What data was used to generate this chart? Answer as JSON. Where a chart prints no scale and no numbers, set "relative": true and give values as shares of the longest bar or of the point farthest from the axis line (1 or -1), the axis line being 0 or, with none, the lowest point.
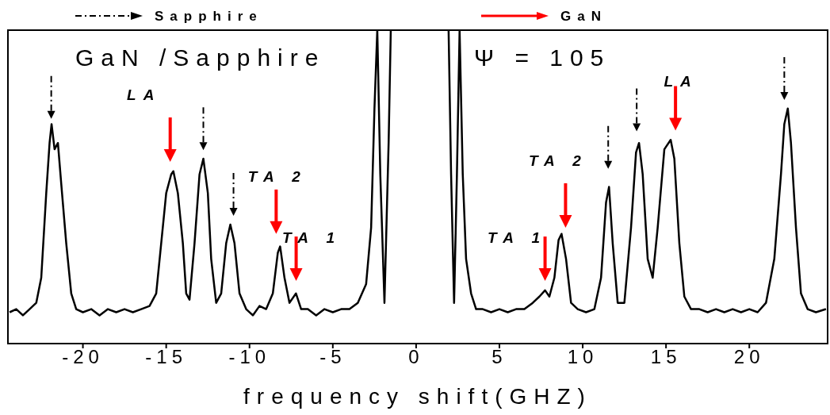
{
  "chart_data": {
    "type": "line",
    "relative": true,
    "xlabel": "frequency shift(GHZ)",
    "xlim": [
      -24.5,
      24.7
    ],
    "xticks": [
      -20,
      -15,
      -10,
      -5,
      0,
      5,
      10,
      15,
      20
    ],
    "legend": "top",
    "annotations": [
      "GaN /Sapphire",
      "Ψ = 105",
      "LA",
      "TA 2",
      "TA 1",
      "TA 1",
      "TA 2",
      "LA"
    ],
    "series": [
      {
        "color": "#000000",
        "x": [
          -24.4,
          -24.0,
          -23.6,
          -23.2,
          -22.8,
          -22.5,
          -22.2,
          -22.0,
          -21.88,
          -21.7,
          -21.5,
          -21.3,
          -21.0,
          -20.7,
          -20.4,
          -20.0,
          -19.5,
          -19.0,
          -18.5,
          -18.0,
          -17.5,
          -17.0,
          -16.5,
          -16.0,
          -15.6,
          -15.3,
          -15.0,
          -14.7,
          -14.57,
          -14.3,
          -14.0,
          -13.8,
          -13.6,
          -13.3,
          -13.0,
          -12.77,
          -12.5,
          -12.3,
          -12.0,
          -11.7,
          -11.4,
          -11.15,
          -10.9,
          -10.6,
          -10.2,
          -9.8,
          -9.4,
          -9.0,
          -8.6,
          -8.3,
          -8.16,
          -7.9,
          -7.6,
          -7.21,
          -6.9,
          -6.5,
          -6.0,
          -5.5,
          -5.0,
          -4.5,
          -4.0,
          -3.5,
          -3.0,
          -2.7,
          -2.5,
          -2.33,
          -2.15,
          -1.9,
          -1.65,
          -1.52,
          0,
          1.95,
          2.1,
          2.28,
          2.45,
          2.61,
          2.8,
          3.0,
          3.3,
          3.6,
          4.0,
          4.5,
          5.0,
          5.5,
          6.0,
          6.5,
          7.0,
          7.4,
          7.74,
          8.0,
          8.3,
          8.55,
          8.73,
          9.0,
          9.3,
          9.7,
          10.2,
          10.7,
          11.1,
          11.4,
          11.58,
          11.8,
          12.1,
          12.5,
          12.9,
          13.2,
          13.38,
          13.6,
          13.9,
          14.2,
          14.5,
          14.9,
          15.28,
          15.5,
          15.8,
          16.1,
          16.5,
          17.0,
          17.5,
          18.0,
          18.5,
          19.0,
          19.5,
          20.0,
          20.5,
          21.0,
          21.5,
          21.9,
          22.1,
          22.31,
          22.5,
          22.8,
          23.1,
          23.5,
          24.0,
          24.6
        ],
        "values": [
          0.1,
          0.11,
          0.09,
          0.11,
          0.13,
          0.21,
          0.48,
          0.64,
          0.7,
          0.62,
          0.64,
          0.51,
          0.32,
          0.16,
          0.11,
          0.1,
          0.11,
          0.09,
          0.11,
          0.1,
          0.11,
          0.1,
          0.11,
          0.12,
          0.16,
          0.32,
          0.48,
          0.54,
          0.55,
          0.48,
          0.32,
          0.16,
          0.14,
          0.32,
          0.54,
          0.59,
          0.48,
          0.27,
          0.13,
          0.16,
          0.32,
          0.38,
          0.32,
          0.16,
          0.11,
          0.09,
          0.12,
          0.11,
          0.16,
          0.29,
          0.31,
          0.21,
          0.13,
          0.16,
          0.11,
          0.11,
          0.09,
          0.11,
          0.1,
          0.11,
          0.11,
          0.13,
          0.19,
          0.37,
          0.75,
          1,
          0.54,
          0.13,
          0.64,
          1,
          null,
          1,
          0.54,
          0.13,
          0.54,
          1,
          0.54,
          0.27,
          0.16,
          0.11,
          0.11,
          0.1,
          0.11,
          0.1,
          0.11,
          0.11,
          0.13,
          0.15,
          0.17,
          0.15,
          0.21,
          0.33,
          0.35,
          0.27,
          0.13,
          0.11,
          0.1,
          0.11,
          0.21,
          0.45,
          0.5,
          0.32,
          0.13,
          0.13,
          0.37,
          0.61,
          0.64,
          0.54,
          0.27,
          0.21,
          0.37,
          0.62,
          0.65,
          0.59,
          0.32,
          0.15,
          0.11,
          0.11,
          0.1,
          0.11,
          0.1,
          0.11,
          0.1,
          0.11,
          0.1,
          0.13,
          0.27,
          0.54,
          0.7,
          0.75,
          0.64,
          0.37,
          0.16,
          0.11,
          0.1,
          0.11
        ]
      },
      {
        "type": "scatter",
        "name": "Sapphire",
        "color": "#000000",
        "line_style": "dashed",
        "x": [
          -21.9,
          -12.77,
          -10.96,
          11.53,
          13.24,
          22.1
        ],
        "values": [
          0.73,
          0.63,
          0.42,
          0.57,
          0.69,
          0.79
        ]
      },
      {
        "type": "scatter",
        "name": "GaN",
        "color": "#ff0000",
        "x": [
          -14.76,
          -8.4,
          -7.2,
          7.74,
          8.97,
          15.57
        ],
        "values": [
          0.6,
          0.37,
          0.22,
          0.22,
          0.39,
          0.7
        ]
      }
    ]
  }
}
